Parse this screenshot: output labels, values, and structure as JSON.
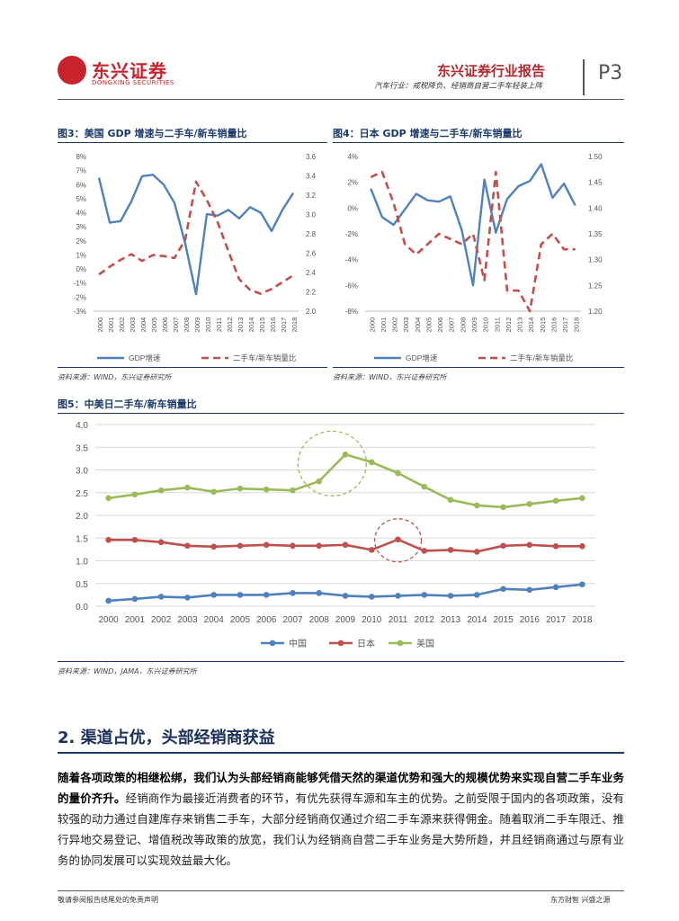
{
  "header": {
    "logo_cn": "东兴证券",
    "logo_en": "DONGXING SECURITIES",
    "brand": "东兴证券行业报告",
    "subtitle": "汽车行业：戒税降负、经销商自营二手车轻装上阵",
    "page": "P3"
  },
  "fig3": {
    "title": "图3：美国 GDP 增速与二手车/新车销量比",
    "source": "资料来源：WIND，东兴证券研究所"
  },
  "fig4": {
    "title": "图4：日本 GDP 增速与二手车/新车销量比",
    "source": "资料来源：WIND，东兴证券研究所"
  },
  "fig5": {
    "title": "图5：中美日二手车/新车销量比",
    "source": "资料来源：WIND，JAMA，东兴证券研究所"
  },
  "section": {
    "title": "2. 渠道占优，头部经销商获益"
  },
  "paragraph": {
    "bold": "随着各项政策的相继松绑，我们认为头部经销商能够凭借天然的渠道优势和强大的规模优势来实现自营二手车业务的量价齐升。",
    "rest": "经销商作为最接近消费者的环节，有优先获得车源和车主的优势。之前受限于国内的各项政策，没有较强的动力通过自建库存来销售二手车，大部分经销商仅通过介绍二手车源来获得佣金。随着取消二手车限迁、推行异地交易登记、增值税改等政策的放宽，我们认为经销商自营二手车业务是大势所趋，并且经销商通过与原有业务的协同发展可以实现效益最大化。"
  },
  "footer": {
    "left": "敬请参阅报告结尾处的免责声明",
    "right": "东方财智  兴盛之源"
  },
  "chart_data": [
    {
      "type": "line",
      "title": "图3：美国 GDP 增速与二手车/新车销量比",
      "categories": [
        "2000",
        "2001",
        "2002",
        "2003",
        "2004",
        "2005",
        "2006",
        "2007",
        "2008",
        "2009",
        "2010",
        "2011",
        "2012",
        "2013",
        "2014",
        "2015",
        "2016",
        "2017",
        "2018"
      ],
      "series": [
        {
          "name": "GDP增速",
          "axis": "left",
          "style": "solid",
          "color": "#4f81bd",
          "values": [
            6.5,
            3.3,
            3.4,
            4.8,
            6.6,
            6.7,
            6.0,
            4.7,
            1.8,
            -1.8,
            3.9,
            3.8,
            4.2,
            3.6,
            4.4,
            4.0,
            2.7,
            4.2,
            5.4
          ]
        },
        {
          "name": "二手车/新车销量比",
          "axis": "right",
          "style": "dashed",
          "color": "#c0504d",
          "values": [
            2.38,
            2.46,
            2.53,
            2.59,
            2.52,
            2.58,
            2.57,
            2.55,
            2.74,
            3.34,
            3.15,
            2.92,
            2.62,
            2.33,
            2.22,
            2.18,
            2.23,
            2.3,
            2.37
          ]
        }
      ],
      "ylim_left": [
        -3,
        8
      ],
      "yticks_left": [
        "8%",
        "7%",
        "6%",
        "5%",
        "4%",
        "3%",
        "2%",
        "1%",
        "0%",
        "-1%",
        "-2%",
        "-3%"
      ],
      "ylim_right": [
        2.0,
        3.6
      ],
      "yticks_right": [
        "3.6",
        "3.4",
        "3.2",
        "3.0",
        "2.8",
        "2.6",
        "2.4",
        "2.2",
        "2.0"
      ],
      "legend": [
        "GDP增速",
        "二手车/新车销量比"
      ]
    },
    {
      "type": "line",
      "title": "图4：日本 GDP 增速与二手车/新车销量比",
      "categories": [
        "2000",
        "2001",
        "2002",
        "2003",
        "2004",
        "2005",
        "2006",
        "2007",
        "2008",
        "2009",
        "2010",
        "2011",
        "2012",
        "2013",
        "2014",
        "2015",
        "2016",
        "2017",
        "2018"
      ],
      "series": [
        {
          "name": "GDP增速",
          "axis": "left",
          "style": "solid",
          "color": "#4f81bd",
          "values": [
            1.5,
            -0.7,
            -1.3,
            -0.1,
            1.1,
            0.6,
            0.5,
            0.9,
            -1.7,
            -6.0,
            2.2,
            -1.9,
            0.7,
            1.7,
            2.1,
            3.4,
            0.8,
            1.9,
            0.2
          ]
        },
        {
          "name": "二手车/新车销量比",
          "axis": "right",
          "style": "dashed",
          "color": "#c0504d",
          "values": [
            1.46,
            1.47,
            1.41,
            1.33,
            1.31,
            1.33,
            1.35,
            1.34,
            1.33,
            1.35,
            1.26,
            1.47,
            1.24,
            1.24,
            1.2,
            1.33,
            1.35,
            1.32,
            1.32
          ]
        }
      ],
      "ylim_left": [
        -8,
        4
      ],
      "yticks_left": [
        "4%",
        "2%",
        "0%",
        "-2%",
        "-4%",
        "-6%",
        "-8%"
      ],
      "ylim_right": [
        1.2,
        1.5
      ],
      "yticks_right": [
        "1.50",
        "1.45",
        "1.40",
        "1.35",
        "1.30",
        "1.25",
        "1.20"
      ],
      "legend": [
        "GDP增速",
        "二手车/新车销量比"
      ]
    },
    {
      "type": "line",
      "title": "图5：中美日二手车/新车销量比",
      "categories": [
        "2000",
        "2001",
        "2002",
        "2003",
        "2004",
        "2005",
        "2006",
        "2007",
        "2008",
        "2009",
        "2010",
        "2011",
        "2012",
        "2013",
        "2014",
        "2015",
        "2016",
        "2017",
        "2018"
      ],
      "series": [
        {
          "name": "中国",
          "color": "#4f81bd",
          "values": [
            0.12,
            0.16,
            0.21,
            0.19,
            0.25,
            0.25,
            0.25,
            0.29,
            0.29,
            0.23,
            0.21,
            0.23,
            0.25,
            0.23,
            0.25,
            0.38,
            0.36,
            0.42,
            0.48
          ]
        },
        {
          "name": "日本",
          "color": "#c0504d",
          "values": [
            1.46,
            1.46,
            1.41,
            1.33,
            1.31,
            1.33,
            1.35,
            1.33,
            1.33,
            1.35,
            1.24,
            1.47,
            1.22,
            1.24,
            1.2,
            1.33,
            1.35,
            1.32,
            1.32
          ]
        },
        {
          "name": "美国",
          "color": "#9bbb59",
          "values": [
            2.38,
            2.46,
            2.55,
            2.61,
            2.52,
            2.59,
            2.57,
            2.55,
            2.75,
            3.34,
            3.17,
            2.93,
            2.63,
            2.34,
            2.22,
            2.18,
            2.25,
            2.32,
            2.38
          ]
        }
      ],
      "ylim": [
        0,
        4
      ],
      "yticks": [
        "4.0",
        "3.5",
        "3.0",
        "2.5",
        "2.0",
        "1.5",
        "1.0",
        "0.5",
        "0.0"
      ],
      "legend": [
        "中国",
        "日本",
        "美国"
      ],
      "annotations": [
        "dashed circle around 美国 2009 peak",
        "dashed circle around 日本 2011 peak"
      ]
    }
  ]
}
